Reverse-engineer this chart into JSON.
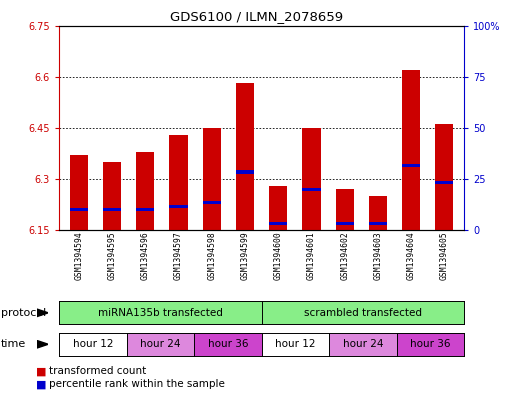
{
  "title": "GDS6100 / ILMN_2078659",
  "samples": [
    "GSM1394594",
    "GSM1394595",
    "GSM1394596",
    "GSM1394597",
    "GSM1394598",
    "GSM1394599",
    "GSM1394600",
    "GSM1394601",
    "GSM1394602",
    "GSM1394603",
    "GSM1394604",
    "GSM1394605"
  ],
  "bar_bottoms": [
    6.15,
    6.15,
    6.15,
    6.15,
    6.15,
    6.15,
    6.15,
    6.15,
    6.15,
    6.15,
    6.15,
    6.15
  ],
  "bar_tops": [
    6.37,
    6.35,
    6.38,
    6.43,
    6.45,
    6.58,
    6.28,
    6.45,
    6.27,
    6.25,
    6.62,
    6.46
  ],
  "percentile_values": [
    6.21,
    6.21,
    6.21,
    6.22,
    6.23,
    6.32,
    6.17,
    6.27,
    6.17,
    6.17,
    6.34,
    6.29
  ],
  "ylim_left": [
    6.15,
    6.75
  ],
  "ylim_right": [
    0,
    100
  ],
  "yticks_left": [
    6.15,
    6.3,
    6.45,
    6.6,
    6.75
  ],
  "yticks_right": [
    0,
    25,
    50,
    75,
    100
  ],
  "ytick_labels_left": [
    "6.15",
    "6.3",
    "6.45",
    "6.6",
    "6.75"
  ],
  "ytick_labels_right": [
    "0",
    "25",
    "50",
    "75",
    "100%"
  ],
  "bar_color": "#cc0000",
  "percentile_color": "#0000cc",
  "background_color": "#ffffff",
  "plot_bg_color": "#ffffff",
  "protocol_labels": [
    "miRNA135b transfected",
    "scrambled transfected"
  ],
  "protocol_color": "#88ee88",
  "time_labels": [
    "hour 12",
    "hour 24",
    "hour 36",
    "hour 12",
    "hour 24",
    "hour 36"
  ],
  "time_colors": [
    "#ffffff",
    "#dd88dd",
    "#cc44cc",
    "#ffffff",
    "#dd88dd",
    "#cc44cc"
  ],
  "legend_items": [
    "transformed count",
    "percentile rank within the sample"
  ],
  "legend_colors": [
    "#cc0000",
    "#0000cc"
  ],
  "bar_width": 0.55
}
